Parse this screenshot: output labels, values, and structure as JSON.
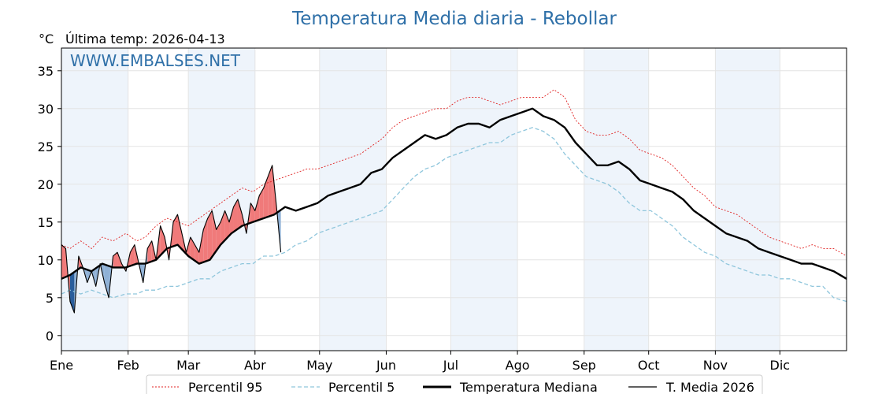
{
  "chart_data": {
    "type": "line",
    "title": "Temperatura Media diaria - Rebollar",
    "unit_label": "°C",
    "last_temp_label": "Última temp: 2026-04-13",
    "watermark": "WWW.EMBALSES.NET",
    "ylim": [
      -2,
      38
    ],
    "yticks": [
      0,
      5,
      10,
      15,
      20,
      25,
      30,
      35
    ],
    "xlim_days": [
      1,
      366
    ],
    "months": [
      {
        "label": "Ene",
        "day": 1
      },
      {
        "label": "Feb",
        "day": 32
      },
      {
        "label": "Mar",
        "day": 60
      },
      {
        "label": "Abr",
        "day": 91
      },
      {
        "label": "May",
        "day": 121
      },
      {
        "label": "Jun",
        "day": 152
      },
      {
        "label": "Jul",
        "day": 182
      },
      {
        "label": "Ago",
        "day": 213
      },
      {
        "label": "Sep",
        "day": 244
      },
      {
        "label": "Oct",
        "day": 274
      },
      {
        "label": "Nov",
        "day": 305
      },
      {
        "label": "Dic",
        "day": 335
      }
    ],
    "grid": true,
    "legend_position": "bottom",
    "colors": {
      "p95": "#e02020",
      "p5": "#8fc6dc",
      "median": "#000000",
      "year": "#000000",
      "above": "#f07a7a",
      "below_light": "#8fb1d6",
      "below_dark": "#2a5e9c",
      "band": "#eef4fb",
      "title": "#2f70a8"
    },
    "series": [
      {
        "name": "Percentil 95",
        "x": [
          1,
          5,
          10,
          15,
          20,
          25,
          31,
          36,
          40,
          45,
          50,
          55,
          60,
          65,
          70,
          75,
          80,
          85,
          90,
          95,
          100,
          105,
          110,
          115,
          120,
          125,
          130,
          135,
          140,
          145,
          150,
          155,
          160,
          165,
          170,
          175,
          180,
          185,
          190,
          195,
          200,
          205,
          210,
          215,
          220,
          225,
          230,
          235,
          240,
          245,
          250,
          255,
          260,
          265,
          270,
          275,
          280,
          285,
          290,
          295,
          300,
          305,
          310,
          315,
          320,
          325,
          330,
          335,
          340,
          345,
          350,
          355,
          360,
          366
        ],
        "values": [
          12.0,
          11.5,
          12.5,
          11.5,
          13.0,
          12.5,
          13.5,
          12.5,
          13.0,
          14.5,
          15.5,
          15.0,
          14.5,
          15.5,
          16.5,
          17.5,
          18.5,
          19.5,
          19.0,
          20.0,
          20.5,
          21.0,
          21.5,
          22.0,
          22.0,
          22.5,
          23.0,
          23.5,
          24.0,
          25.0,
          26.0,
          27.5,
          28.5,
          29.0,
          29.5,
          30.0,
          30.0,
          31.0,
          31.5,
          31.5,
          31.0,
          30.5,
          31.0,
          31.5,
          31.5,
          31.5,
          32.5,
          31.5,
          28.5,
          27.0,
          26.5,
          26.5,
          27.0,
          26.0,
          24.5,
          24.0,
          23.5,
          22.5,
          21.0,
          19.5,
          18.5,
          17.0,
          16.5,
          16.0,
          15.0,
          14.0,
          13.0,
          12.5,
          12.0,
          11.5,
          12.0,
          11.5,
          11.5,
          10.5
        ]
      },
      {
        "name": "Percentil 5",
        "x": [
          1,
          5,
          10,
          15,
          20,
          25,
          31,
          36,
          40,
          45,
          50,
          55,
          60,
          65,
          70,
          75,
          80,
          85,
          90,
          95,
          100,
          105,
          110,
          115,
          120,
          125,
          130,
          135,
          140,
          145,
          150,
          155,
          160,
          165,
          170,
          175,
          180,
          185,
          190,
          195,
          200,
          205,
          210,
          215,
          220,
          225,
          230,
          235,
          240,
          245,
          250,
          255,
          260,
          265,
          270,
          275,
          280,
          285,
          290,
          295,
          300,
          305,
          310,
          315,
          320,
          325,
          330,
          335,
          340,
          345,
          350,
          355,
          360,
          366
        ],
        "values": [
          5.5,
          6.0,
          5.5,
          6.0,
          5.5,
          5.0,
          5.5,
          5.5,
          6.0,
          6.0,
          6.5,
          6.5,
          7.0,
          7.5,
          7.5,
          8.5,
          9.0,
          9.5,
          9.5,
          10.5,
          10.5,
          11.0,
          12.0,
          12.5,
          13.5,
          14.0,
          14.5,
          15.0,
          15.5,
          16.0,
          16.5,
          18.0,
          19.5,
          21.0,
          22.0,
          22.5,
          23.5,
          24.0,
          24.5,
          25.0,
          25.5,
          25.5,
          26.5,
          27.0,
          27.5,
          27.0,
          26.0,
          24.0,
          22.5,
          21.0,
          20.5,
          20.0,
          19.0,
          17.5,
          16.5,
          16.5,
          15.5,
          14.5,
          13.0,
          12.0,
          11.0,
          10.5,
          9.5,
          9.0,
          8.5,
          8.0,
          8.0,
          7.5,
          7.5,
          7.0,
          6.5,
          6.5,
          5.0,
          4.5
        ]
      },
      {
        "name": "Temperatura Mediana",
        "x": [
          1,
          5,
          10,
          15,
          20,
          25,
          31,
          36,
          40,
          45,
          50,
          55,
          60,
          65,
          70,
          75,
          80,
          85,
          90,
          95,
          100,
          105,
          110,
          115,
          120,
          125,
          130,
          135,
          140,
          145,
          150,
          155,
          160,
          165,
          170,
          175,
          180,
          185,
          190,
          195,
          200,
          205,
          210,
          215,
          220,
          225,
          230,
          235,
          240,
          245,
          250,
          255,
          260,
          265,
          270,
          275,
          280,
          285,
          290,
          295,
          300,
          305,
          310,
          315,
          320,
          325,
          330,
          335,
          340,
          345,
          350,
          355,
          360,
          366
        ],
        "values": [
          7.5,
          8.0,
          9.0,
          8.5,
          9.5,
          9.0,
          9.0,
          9.5,
          9.5,
          10.0,
          11.5,
          12.0,
          10.5,
          9.5,
          10.0,
          12.0,
          13.5,
          14.5,
          15.0,
          15.5,
          16.0,
          17.0,
          16.5,
          17.0,
          17.5,
          18.5,
          19.0,
          19.5,
          20.0,
          21.5,
          22.0,
          23.5,
          24.5,
          25.5,
          26.5,
          26.0,
          26.5,
          27.5,
          28.0,
          28.0,
          27.5,
          28.5,
          29.0,
          29.5,
          30.0,
          29.0,
          28.5,
          27.5,
          25.5,
          24.0,
          22.5,
          22.5,
          23.0,
          22.0,
          20.5,
          20.0,
          19.5,
          19.0,
          18.0,
          16.5,
          15.5,
          14.5,
          13.5,
          13.0,
          12.5,
          11.5,
          11.0,
          10.5,
          10.0,
          9.5,
          9.5,
          9.0,
          8.5,
          7.5
        ]
      },
      {
        "name": "T. Media 2026",
        "x": [
          1,
          3,
          5,
          7,
          9,
          11,
          13,
          15,
          17,
          19,
          21,
          23,
          25,
          27,
          29,
          31,
          33,
          35,
          37,
          39,
          41,
          43,
          45,
          47,
          49,
          51,
          53,
          55,
          57,
          59,
          61,
          63,
          65,
          67,
          69,
          71,
          73,
          75,
          77,
          79,
          81,
          83,
          85,
          87,
          89,
          91,
          93,
          95,
          97,
          99,
          101,
          103
        ],
        "values": [
          12.0,
          11.5,
          4.5,
          3.0,
          10.5,
          9.0,
          7.0,
          8.5,
          6.5,
          9.5,
          7.0,
          5.0,
          10.5,
          11.0,
          9.5,
          8.5,
          11.0,
          12.0,
          9.5,
          7.0,
          11.5,
          12.5,
          10.0,
          14.5,
          13.0,
          10.0,
          15.0,
          16.0,
          13.5,
          11.0,
          13.0,
          12.0,
          11.0,
          14.0,
          15.5,
          16.5,
          14.0,
          15.0,
          16.5,
          15.0,
          17.0,
          18.0,
          16.0,
          13.5,
          17.5,
          16.5,
          18.5,
          19.5,
          21.0,
          22.5,
          17.0,
          11.0
        ]
      }
    ]
  },
  "legend": {
    "p95_label": "Percentil 95",
    "p5_label": "Percentil 5",
    "median_label": "Temperatura Mediana",
    "year_label": "T. Media 2026"
  }
}
